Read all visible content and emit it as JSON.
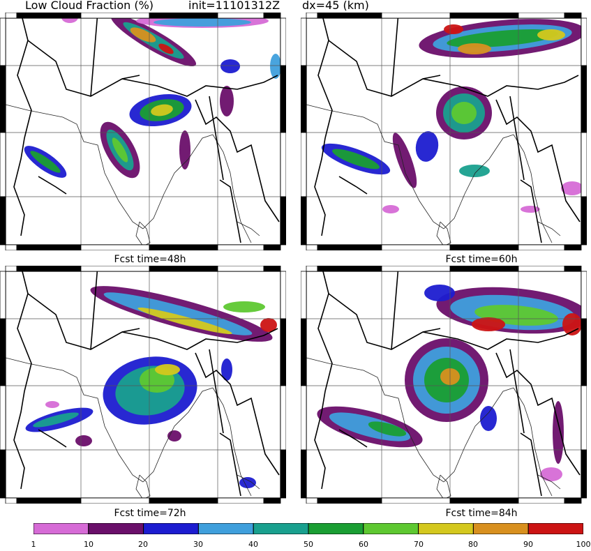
{
  "header": {
    "title": "Low Cloud Fraction (%)",
    "init": "init=11101312Z",
    "dx": "dx=45 (km)"
  },
  "panels": [
    {
      "id": "p1",
      "caption": "",
      "forecast_hours": null
    },
    {
      "id": "p2",
      "caption": "Fcst time=48h",
      "forecast_hours": 48
    },
    {
      "id": "p3",
      "caption": "Fcst time=60h",
      "forecast_hours": 60
    },
    {
      "id": "p4",
      "caption": "Fcst time=72h",
      "forecast_hours": 72
    },
    {
      "id": "p5",
      "caption": "Fcst time=84h",
      "forecast_hours": 84
    }
  ],
  "colorbar": {
    "unit": "%",
    "labels": [
      "1",
      "10",
      "20",
      "30",
      "40",
      "50",
      "60",
      "70",
      "80",
      "90",
      "100"
    ],
    "colors": [
      "#d66bd6",
      "#6a0f6a",
      "#1c1cd0",
      "#3f9fdc",
      "#19a08e",
      "#1a9e33",
      "#5ec831",
      "#d4c81e",
      "#d8901f",
      "#cc1414"
    ]
  }
}
